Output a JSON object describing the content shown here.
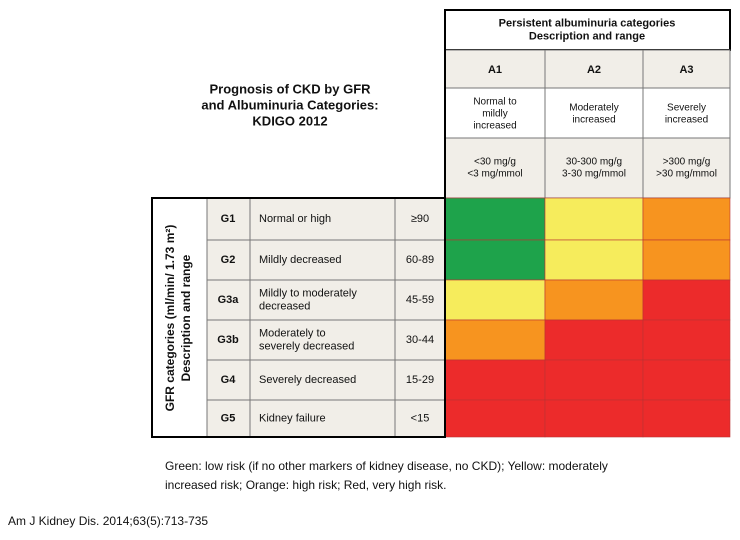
{
  "title": [
    "Prognosis of CKD by GFR",
    "and Albuminuria Categories:",
    "KDIGO 2012"
  ],
  "albuminuria": {
    "heading": [
      "Persistent albuminuria categories",
      "Description and range"
    ],
    "categories": [
      {
        "code": "A1",
        "description": [
          "Normal to",
          "mildly",
          "increased"
        ],
        "range": [
          "<30 mg/g",
          "<3 mg/mmol"
        ]
      },
      {
        "code": "A2",
        "description": [
          "Moderately",
          "increased"
        ],
        "range": [
          "30-300 mg/g",
          "3-30 mg/mmol"
        ]
      },
      {
        "code": "A3",
        "description": [
          "Severely",
          "increased"
        ],
        "range": [
          ">300 mg/g",
          ">30 mg/mmol"
        ]
      }
    ]
  },
  "gfr": {
    "heading": [
      "GFR categories (ml/min/ 1.73 m²)",
      "Description and range"
    ],
    "categories": [
      {
        "code": "G1",
        "description": [
          "Normal or high"
        ],
        "range": "≥90"
      },
      {
        "code": "G2",
        "description": [
          "Mildly decreased"
        ],
        "range": "60-89"
      },
      {
        "code": "G3a",
        "description": [
          "Mildly to moderately",
          "decreased"
        ],
        "range": "45-59"
      },
      {
        "code": "G3b",
        "description": [
          "Moderately to",
          "severely decreased"
        ],
        "range": "30-44"
      },
      {
        "code": "G4",
        "description": [
          "Severely decreased"
        ],
        "range": "15-29"
      },
      {
        "code": "G5",
        "description": [
          "Kidney failure"
        ],
        "range": "<15"
      }
    ]
  },
  "risk_colors": [
    [
      "#1ea34b",
      "#f6ec5c",
      "#f7941f"
    ],
    [
      "#1ea34b",
      "#f6ec5c",
      "#f7941f"
    ],
    [
      "#f6ec5c",
      "#f7941f",
      "#ec2b2b"
    ],
    [
      "#f7941f",
      "#ec2b2b",
      "#ec2b2b"
    ],
    [
      "#ec2b2b",
      "#ec2b2b",
      "#ec2b2b"
    ],
    [
      "#ec2b2b",
      "#ec2b2b",
      "#ec2b2b"
    ]
  ],
  "legend": [
    "Green: low risk (if no other markers of kidney disease, no CKD); Yellow: moderately",
    "increased risk; Orange: high risk; Red, very high risk."
  ],
  "citation": "Am J Kidney Dis. 2014;63(5):713-735"
}
